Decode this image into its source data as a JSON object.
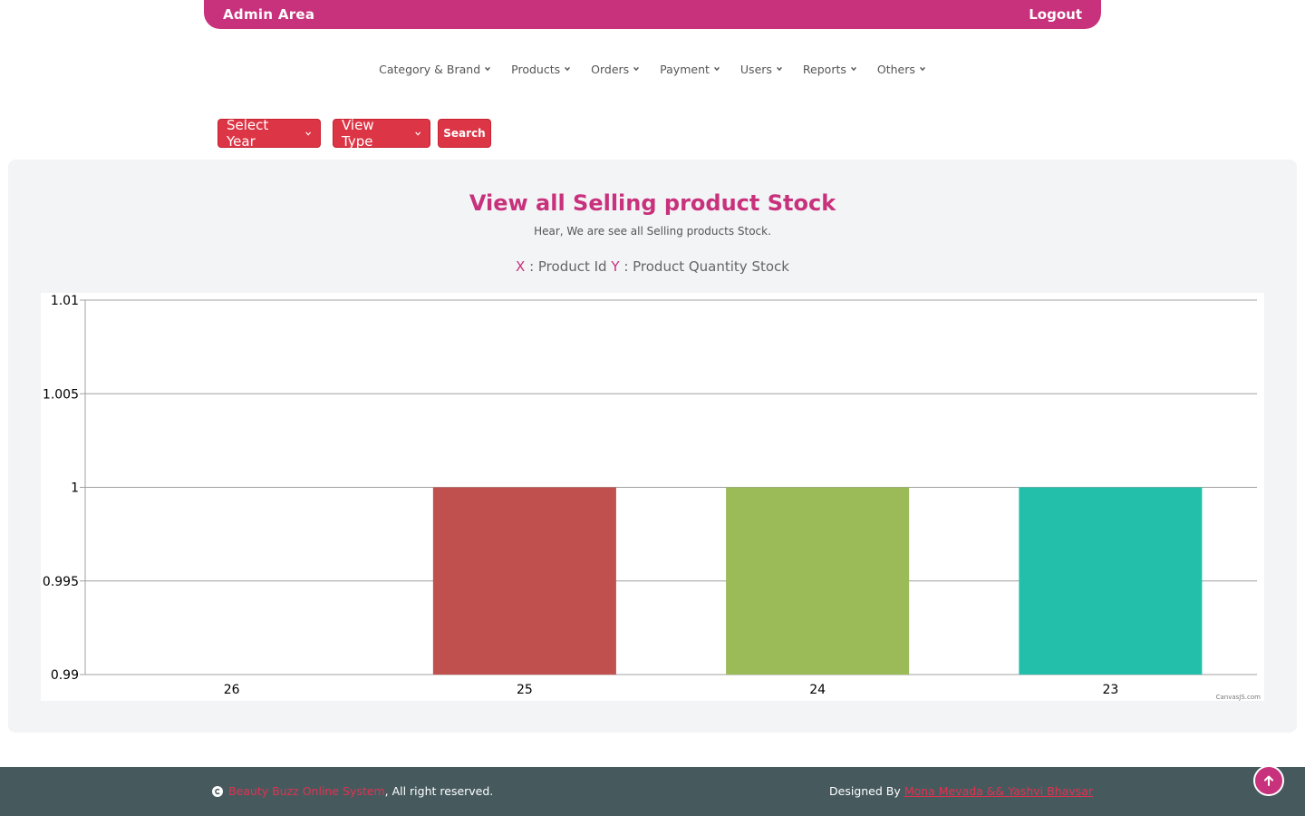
{
  "header": {
    "brand": "Admin Area",
    "logout": "Logout",
    "color": "#c8317b"
  },
  "nav": [
    {
      "label": "Category & Brand"
    },
    {
      "label": "Products"
    },
    {
      "label": "Orders"
    },
    {
      "label": "Payment"
    },
    {
      "label": "Users"
    },
    {
      "label": "Reports"
    },
    {
      "label": "Others"
    }
  ],
  "controls": {
    "year": "Select Year",
    "view_type": "View Type",
    "search": "Search",
    "color": "#dc3545"
  },
  "panel": {
    "title": "View all Selling product Stock",
    "subtitle": "Hear, We are see all Selling products Stock.",
    "x_key": "X",
    "x_text": ": Product Id",
    "y_key": "Y",
    "y_text": ": Product Quantity Stock"
  },
  "chart_data": {
    "type": "bar",
    "categories": [
      "26",
      "25",
      "24",
      "23"
    ],
    "values": [
      0.99,
      1,
      1,
      1
    ],
    "colors": [
      "#4f81bc",
      "#c0504e",
      "#9bbb58",
      "#23bfaa"
    ],
    "title": "",
    "xlabel": "",
    "ylabel": "",
    "ylim": [
      0.99,
      1.01
    ],
    "yticks": [
      "0.99",
      "0.995",
      "1",
      "1.005",
      "1.01"
    ],
    "grid": true,
    "credit": "CanvasJS.com"
  },
  "footer": {
    "site": "Beauty Buzz Online System",
    "rights": ", All right reserved.",
    "designed_by": "Designed By ",
    "designers": "Mona Mevada && Yashvi Bhavsar"
  }
}
